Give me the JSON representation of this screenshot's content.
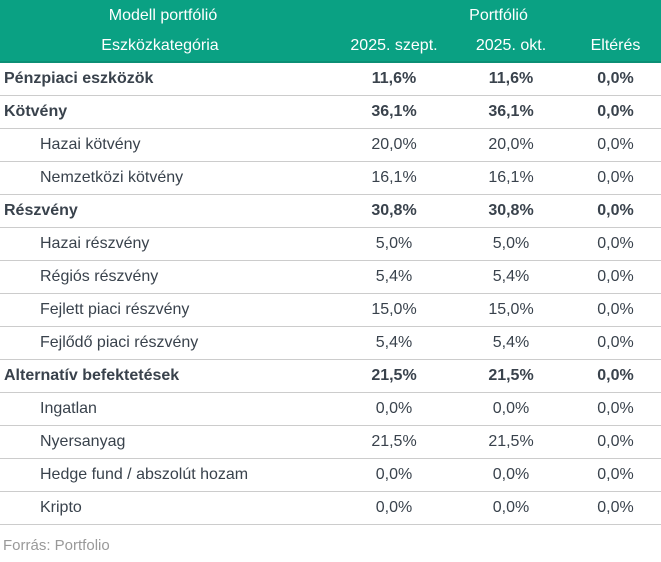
{
  "header": {
    "group": {
      "model": "Modell portfólió",
      "portfolio": "Portfólió"
    },
    "columns": [
      "Eszközkategória",
      "2025. szept.",
      "2025. okt.",
      "Eltérés"
    ]
  },
  "table": {
    "rows": [
      {
        "label": "Pénzpiaci eszközök",
        "sept": "11,6%",
        "okt": "11,6%",
        "diff": "0,0%",
        "bold": true,
        "indent": false
      },
      {
        "label": "Kötvény",
        "sept": "36,1%",
        "okt": "36,1%",
        "diff": "0,0%",
        "bold": true,
        "indent": false
      },
      {
        "label": "Hazai kötvény",
        "sept": "20,0%",
        "okt": "20,0%",
        "diff": "0,0%",
        "bold": false,
        "indent": true
      },
      {
        "label": "Nemzetközi kötvény",
        "sept": "16,1%",
        "okt": "16,1%",
        "diff": "0,0%",
        "bold": false,
        "indent": true
      },
      {
        "label": "Részvény",
        "sept": "30,8%",
        "okt": "30,8%",
        "diff": "0,0%",
        "bold": true,
        "indent": false
      },
      {
        "label": "Hazai részvény",
        "sept": "5,0%",
        "okt": "5,0%",
        "diff": "0,0%",
        "bold": false,
        "indent": true
      },
      {
        "label": "Régiós részvény",
        "sept": "5,4%",
        "okt": "5,4%",
        "diff": "0,0%",
        "bold": false,
        "indent": true
      },
      {
        "label": "Fejlett piaci részvény",
        "sept": "15,0%",
        "okt": "15,0%",
        "diff": "0,0%",
        "bold": false,
        "indent": true
      },
      {
        "label": "Fejlődő piaci részvény",
        "sept": "5,4%",
        "okt": "5,4%",
        "diff": "0,0%",
        "bold": false,
        "indent": true
      },
      {
        "label": "Alternatív befektetések",
        "sept": "21,5%",
        "okt": "21,5%",
        "diff": "0,0%",
        "bold": true,
        "indent": false
      },
      {
        "label": "Ingatlan",
        "sept": "0,0%",
        "okt": "0,0%",
        "diff": "0,0%",
        "bold": false,
        "indent": true
      },
      {
        "label": "Nyersanyag",
        "sept": "21,5%",
        "okt": "21,5%",
        "diff": "0,0%",
        "bold": false,
        "indent": true
      },
      {
        "label": "Hedge fund / abszolút hozam",
        "sept": "0,0%",
        "okt": "0,0%",
        "diff": "0,0%",
        "bold": false,
        "indent": true
      },
      {
        "label": "Kripto",
        "sept": "0,0%",
        "okt": "0,0%",
        "diff": "0,0%",
        "bold": false,
        "indent": true
      }
    ]
  },
  "footer": {
    "source": "Forrás: Portfolio"
  },
  "colors": {
    "header_bg": "#0aa183",
    "header_border": "#0b8f75",
    "divider": "#cccccc",
    "body_text": "#39424c",
    "footer_text": "#999999"
  },
  "chart_data": {
    "type": "table",
    "title": "Modell portfólió — Portfólió",
    "columns": [
      "Eszközkategória",
      "2025. szept.",
      "2025. okt.",
      "Eltérés"
    ],
    "unit": "%",
    "rows": [
      [
        "Pénzpiaci eszközök",
        11.6,
        11.6,
        0.0
      ],
      [
        "Kötvény",
        36.1,
        36.1,
        0.0
      ],
      [
        "Hazai kötvény",
        20.0,
        20.0,
        0.0
      ],
      [
        "Nemzetközi kötvény",
        16.1,
        16.1,
        0.0
      ],
      [
        "Részvény",
        30.8,
        30.8,
        0.0
      ],
      [
        "Hazai részvény",
        5.0,
        5.0,
        0.0
      ],
      [
        "Régiós részvény",
        5.4,
        5.4,
        0.0
      ],
      [
        "Fejlett piaci részvény",
        15.0,
        15.0,
        0.0
      ],
      [
        "Fejlődő piaci részvény",
        5.4,
        5.4,
        0.0
      ],
      [
        "Alternatív befektetések",
        21.5,
        21.5,
        0.0
      ],
      [
        "Ingatlan",
        0.0,
        0.0,
        0.0
      ],
      [
        "Nyersanyag",
        21.5,
        21.5,
        0.0
      ],
      [
        "Hedge fund / abszolút hozam",
        0.0,
        0.0,
        0.0
      ],
      [
        "Kripto",
        0.0,
        0.0,
        0.0
      ]
    ],
    "source": "Forrás: Portfolio"
  }
}
